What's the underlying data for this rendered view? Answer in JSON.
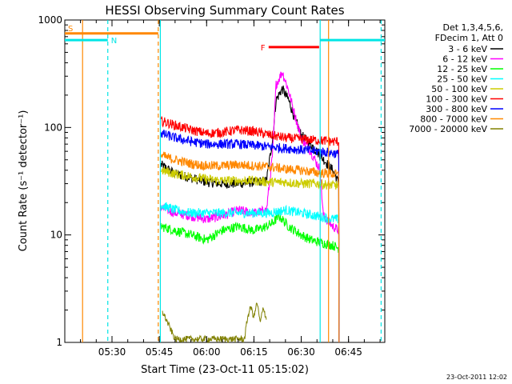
{
  "chart_data": {
    "type": "line",
    "title": "HESSI Observing Summary Count Rates",
    "xlabel": "Start Time (23-Oct-11 05:15:02)",
    "ylabel": "Count Rate (s⁻¹ detector⁻¹)",
    "yscale": "log",
    "x_unit": "UT time of day",
    "xlim": [
      "05:15:02",
      "06:56:30"
    ],
    "ylim": [
      1,
      1000
    ],
    "x_ticks": [
      "05:30",
      "05:45",
      "06:00",
      "06:15",
      "06:30",
      "06:45"
    ],
    "y_ticks": [
      "1",
      "10",
      "100",
      "1000"
    ],
    "grid": false,
    "legend_header": [
      "Det 1,3,4,5,6,",
      "FDecim 1, Att 0"
    ],
    "legend_position": "right, outside plot",
    "footer_date": "23-Oct-2011 12:02",
    "series": [
      {
        "name": "3 - 6 keV",
        "color": "#000000",
        "x": [
          "05:45:30",
          "05:50",
          "05:55",
          "06:00",
          "06:05",
          "06:10",
          "06:15",
          "06:19",
          "06:21",
          "06:22",
          "06:24",
          "06:26",
          "06:28",
          "06:30",
          "06:33",
          "06:36",
          "06:40",
          "06:42"
        ],
        "values": [
          45,
          37,
          34,
          31,
          30,
          30,
          31,
          32,
          80,
          180,
          230,
          180,
          120,
          85,
          70,
          55,
          40,
          30
        ]
      },
      {
        "name": "6 - 12 keV",
        "color": "#ff00ff",
        "x": [
          "05:45:30",
          "05:50",
          "05:55",
          "06:00",
          "06:05",
          "06:10",
          "06:15",
          "06:19",
          "06:21",
          "06:22",
          "06:24",
          "06:26",
          "06:28",
          "06:30",
          "06:33",
          "06:36",
          "06:37",
          "06:40",
          "06:42"
        ],
        "values": [
          18,
          16,
          15,
          14,
          15,
          17,
          16,
          17,
          60,
          250,
          330,
          220,
          130,
          80,
          60,
          40,
          15,
          12,
          11
        ]
      },
      {
        "name": "12 - 25 keV",
        "color": "#00ff00",
        "x": [
          "05:45:30",
          "05:50",
          "05:55",
          "06:00",
          "06:05",
          "06:10",
          "06:15",
          "06:19",
          "06:21",
          "06:23",
          "06:26",
          "06:30",
          "06:33",
          "06:36",
          "06:40",
          "06:42"
        ],
        "values": [
          12,
          11,
          10,
          9,
          11,
          12,
          11,
          12,
          13,
          15,
          12,
          10,
          9,
          8.5,
          8,
          7.5
        ]
      },
      {
        "name": "25 - 50 keV",
        "color": "#00ffff",
        "x": [
          "05:45:30",
          "05:50",
          "05:55",
          "06:00",
          "06:05",
          "06:10",
          "06:15",
          "06:20",
          "06:25",
          "06:30",
          "06:35",
          "06:40",
          "06:42"
        ],
        "values": [
          19,
          17,
          16,
          16,
          16,
          16,
          16,
          16,
          17,
          16,
          15,
          14,
          14
        ]
      },
      {
        "name": "50 - 100 keV",
        "color": "#cccc00",
        "x": [
          "05:45:30",
          "05:50",
          "05:55",
          "06:00",
          "06:05",
          "06:10",
          "06:15",
          "06:20",
          "06:25",
          "06:30",
          "06:35",
          "06:40",
          "06:42"
        ],
        "values": [
          40,
          37,
          35,
          33,
          32,
          32,
          32,
          31,
          31,
          30,
          30,
          29,
          29
        ]
      },
      {
        "name": "100 - 300 keV",
        "color": "#ff0000",
        "x": [
          "05:45:30",
          "05:50",
          "05:55",
          "06:00",
          "06:05",
          "06:10",
          "06:15",
          "06:20",
          "06:25",
          "06:30",
          "06:35",
          "06:40",
          "06:42"
        ],
        "values": [
          115,
          105,
          95,
          88,
          90,
          95,
          92,
          85,
          80,
          78,
          76,
          74,
          74
        ]
      },
      {
        "name": "300 - 800 keV",
        "color": "#0000ff",
        "x": [
          "05:45:30",
          "05:50",
          "05:55",
          "06:00",
          "06:05",
          "06:10",
          "06:15",
          "06:20",
          "06:25",
          "06:30",
          "06:35",
          "06:40",
          "06:42"
        ],
        "values": [
          88,
          80,
          74,
          70,
          70,
          70,
          68,
          66,
          64,
          62,
          60,
          58,
          56
        ]
      },
      {
        "name": "800 - 7000 keV",
        "color": "#ff8800",
        "x": [
          "05:45:30",
          "05:50",
          "05:55",
          "06:00",
          "06:05",
          "06:10",
          "06:15",
          "06:20",
          "06:25",
          "06:30",
          "06:35",
          "06:40",
          "06:42"
        ],
        "values": [
          55,
          50,
          46,
          44,
          44,
          45,
          44,
          43,
          41,
          40,
          38,
          37,
          36
        ]
      },
      {
        "name": "7000 - 20000 keV",
        "color": "#808000",
        "x": [
          "05:46",
          "05:50",
          "06:00",
          "06:12",
          "06:13",
          "06:14",
          "06:15",
          "06:16",
          "06:17",
          "06:18",
          "06:19"
        ],
        "values": [
          1.8,
          1,
          1,
          1,
          1.6,
          2,
          1.6,
          2.2,
          1.4,
          2,
          1.5
        ]
      }
    ],
    "annotations": [
      {
        "label": "S",
        "color": "#ff8800",
        "kind": "spacecraft night",
        "start": "05:15:02",
        "end": "05:44:40",
        "level": 750
      },
      {
        "label": "N",
        "color": "#00e5e5",
        "kind": "SAA",
        "start": "05:15:02",
        "end": "05:28:40",
        "level": 650
      },
      {
        "label": "",
        "color": "#00e5e5",
        "kind": "SAA",
        "start": "06:36:00",
        "end": "06:56:30",
        "level": 650
      },
      {
        "label": "F",
        "color": "#ff0000",
        "kind": "flare",
        "start": "06:19:40",
        "end": "06:35:40",
        "level": 560
      }
    ],
    "vertical_markers": [
      {
        "time": "05:20:40",
        "color": "#ff8800",
        "style": "solid"
      },
      {
        "time": "05:44:40",
        "color": "#ff8800",
        "style": "dashed"
      },
      {
        "time": "05:28:40",
        "color": "#00e5e5",
        "style": "dashed"
      },
      {
        "time": "05:45:20",
        "color": "#00e5e5",
        "style": "solid"
      },
      {
        "time": "06:36:00",
        "color": "#00e5e5",
        "style": "solid"
      },
      {
        "time": "06:38:40",
        "color": "#ff8800",
        "style": "solid"
      },
      {
        "time": "06:55:20",
        "color": "#00e5e5",
        "style": "dashed"
      }
    ]
  }
}
